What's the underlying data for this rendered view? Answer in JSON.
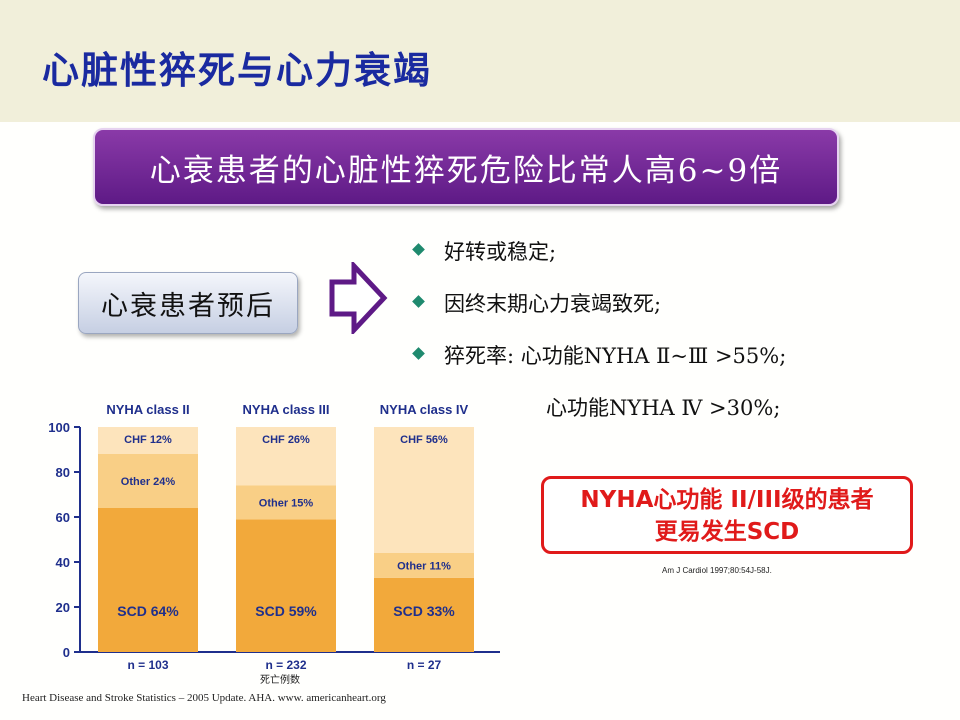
{
  "slide": {
    "title": "心脏性猝死与心力衰竭",
    "banner": "心衰患者的心脏性猝死危险比常人高6~9倍",
    "prognosis_label": "心衰患者预后",
    "bullets": [
      "好转或稳定;",
      "因终末期心力衰竭致死;",
      "猝死率: 心功能NYHA Ⅱ~Ⅲ >55%;"
    ],
    "bullet_continuation": "心功能NYHA Ⅳ >30%;",
    "nyha_box": {
      "line1": "NYHA心功能 II/III级的患者",
      "line2": "更易发生SCD"
    },
    "citation": "Am J Cardiol 1997;80:54J-58J.",
    "source": "Heart Disease and Stroke Statistics – 2005 Update. AHA. www. americanheart.org",
    "colors": {
      "title": "#1a2aa0",
      "banner": "#6e2496",
      "scd": "#f2a93b",
      "other": "#f9cf86",
      "chf": "#fde4bc",
      "axis": "#1f2f8c",
      "nyha_box": "#e01a1a",
      "bullet_diamond": "#1f8a6e"
    }
  },
  "chart_data": {
    "type": "bar",
    "stacked": true,
    "categories": [
      "NYHA class II",
      "NYHA class III",
      "NYHA class IV"
    ],
    "n_labels": [
      "n = 103",
      "n = 232",
      "n = 27"
    ],
    "x_caption": "死亡例数",
    "ylim": [
      0,
      100
    ],
    "yticks": [
      0,
      20,
      40,
      60,
      80,
      100
    ],
    "series": [
      {
        "name": "SCD",
        "values": [
          64,
          59,
          33
        ],
        "labels": [
          "SCD 64%",
          "SCD 59%",
          "SCD 33%"
        ]
      },
      {
        "name": "Other",
        "values": [
          24,
          15,
          11
        ],
        "labels": [
          "Other 24%",
          "Other 15%",
          "Other 11%"
        ]
      },
      {
        "name": "CHF",
        "values": [
          12,
          26,
          56
        ],
        "labels": [
          "CHF 12%",
          "CHF 26%",
          "CHF 56%"
        ]
      }
    ]
  }
}
